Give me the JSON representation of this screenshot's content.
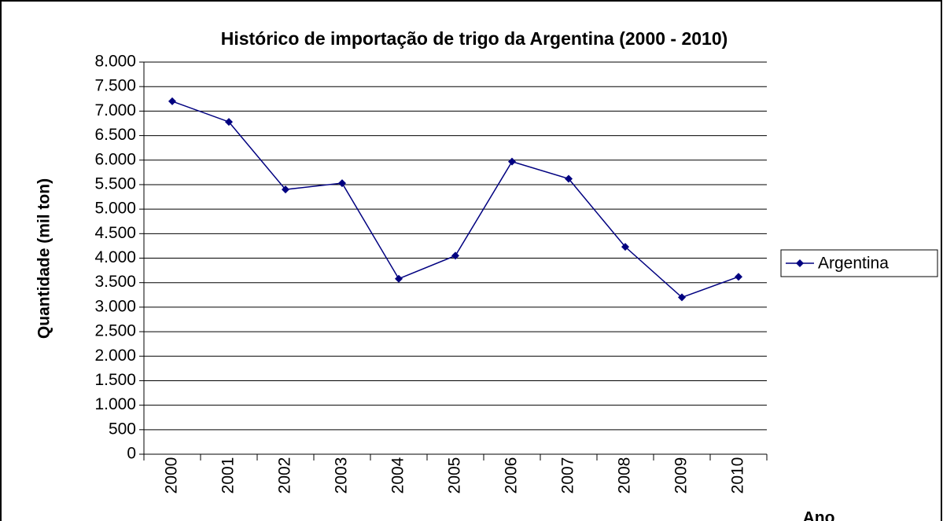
{
  "chart_data": {
    "type": "line",
    "title": "Histórico de importação de trigo da Argentina (2000 - 2010)",
    "y_label": "Quantidade (mil ton)",
    "x_label": "Ano",
    "categories": [
      "2000",
      "2001",
      "2002",
      "2003",
      "2004",
      "2005",
      "2006",
      "2007",
      "2008",
      "2009",
      "2010"
    ],
    "series": [
      {
        "name": "Argentina",
        "color": "#000080",
        "values": [
          7200,
          6780,
          5400,
          5530,
          3580,
          4050,
          5970,
          5620,
          4230,
          3200,
          3620
        ]
      }
    ],
    "ylim": [
      0,
      8000
    ],
    "yticks": [
      0,
      500,
      {
        "value": 1000,
        "label": "1.000"
      },
      {
        "value": 1500,
        "label": "1.500"
      },
      {
        "value": 2000,
        "label": "2.000"
      },
      {
        "value": 2500,
        "label": "2.500"
      },
      {
        "value": 3000,
        "label": "3.000"
      },
      {
        "value": 3500,
        "label": "3.500"
      },
      {
        "value": 4000,
        "label": "4.000"
      },
      {
        "value": 4500,
        "label": "4.500"
      },
      {
        "value": 5000,
        "label": "5.000"
      },
      {
        "value": 5500,
        "label": "5.500"
      },
      {
        "value": 6000,
        "label": "6.000"
      },
      {
        "value": 6500,
        "label": "6.500"
      },
      {
        "value": 7000,
        "label": "7.000"
      },
      {
        "value": 7500,
        "label": "7.500"
      },
      {
        "value": 8000,
        "label": "8.000"
      }
    ],
    "grid": true,
    "legend": "right"
  }
}
